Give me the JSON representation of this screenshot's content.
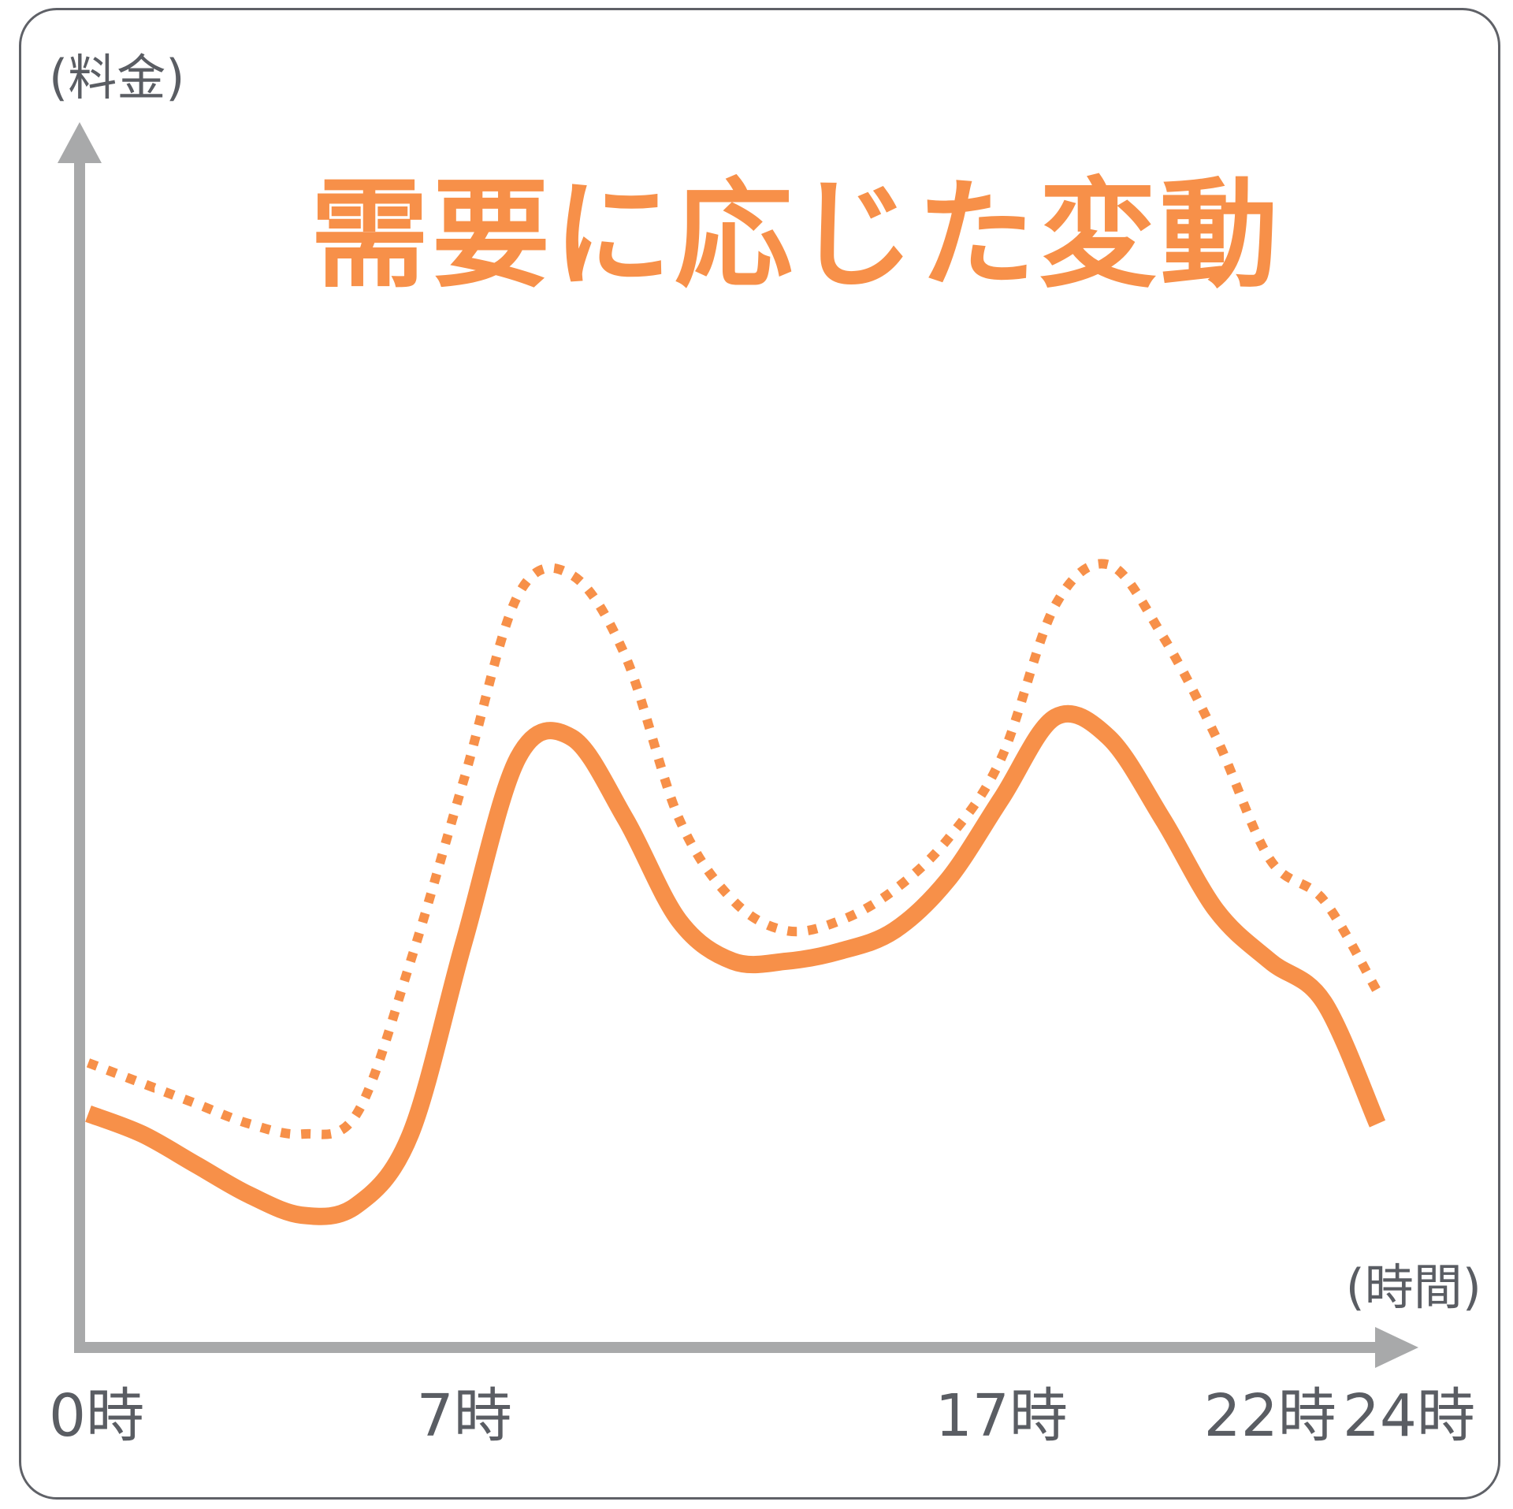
{
  "chart_data": {
    "type": "line",
    "title": "需要に応じた変動",
    "ylabel": "(料金)",
    "xlabel": "(時間)",
    "x_ticks": [
      "0時",
      "7時",
      "17時",
      "22時",
      "24時"
    ],
    "x": [
      0,
      1,
      2,
      3,
      4,
      5,
      6,
      7,
      8,
      9,
      10,
      11,
      12,
      13,
      14,
      15,
      16,
      17,
      18,
      19,
      20,
      21,
      22,
      23,
      24
    ],
    "series": [
      {
        "style": "dotted",
        "values": [
          28,
          26,
          24,
          22,
          21,
          23,
          38,
          56,
          74,
          76,
          68,
          52,
          44,
          41,
          42,
          45,
          50,
          58,
          73,
          77,
          70,
          60,
          48,
          44,
          35
        ]
      },
      {
        "style": "solid",
        "values": [
          23,
          21,
          18,
          15,
          13,
          14,
          21,
          40,
          58,
          60,
          52,
          42,
          38,
          38,
          39,
          41,
          46,
          54,
          62,
          60,
          52,
          43,
          38,
          34,
          22
        ]
      }
    ],
    "ylim": [
      0,
      100
    ],
    "xlim": [
      0,
      24
    ],
    "grid": false,
    "legend": "none",
    "colors": {
      "series": "#f79049",
      "axis": "#a8a9aa",
      "text": "#5a5d63",
      "frame": "#5f6167"
    }
  }
}
